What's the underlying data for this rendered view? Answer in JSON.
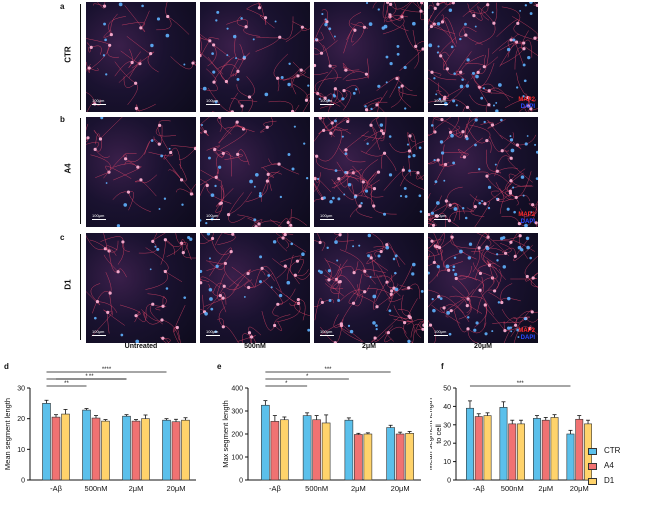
{
  "panel_letters": {
    "a": "a",
    "b": "b",
    "c": "c",
    "d": "d",
    "e": "e",
    "f": "f"
  },
  "rows": [
    {
      "id": "CTR",
      "label": "CTR"
    },
    {
      "id": "A4",
      "label": "A4"
    },
    {
      "id": "D1",
      "label": "D1"
    }
  ],
  "columns": [
    "Untreated",
    "500nM",
    "2μM",
    "20μM"
  ],
  "scale_bar_text": "100μm",
  "stain_labels": {
    "map2": "MAP2",
    "dapi": "DAPI"
  },
  "colors": {
    "CTR": "#5bc0eb",
    "A4": "#f07272",
    "D1": "#ffd36b",
    "neurite": "#e8466a",
    "nuclei": "#5fb2ff"
  },
  "legend": [
    {
      "name": "CTR",
      "color": "#5bc0eb"
    },
    {
      "name": "A4",
      "color": "#f07272"
    },
    {
      "name": "D1",
      "color": "#ffd36b"
    }
  ],
  "chart_data": [
    {
      "type": "bar",
      "panel": "d",
      "ylabel": "Mean segment length",
      "xlabel": "",
      "categories": [
        "-Aβ",
        "500nM",
        "2μM",
        "20μM"
      ],
      "ylim": [
        0,
        30
      ],
      "yticks": [
        0,
        10,
        20,
        30
      ],
      "series": [
        {
          "name": "CTR",
          "values": [
            25,
            22.8,
            20.8,
            19.5
          ],
          "errors": [
            1.0,
            0.5,
            0.5,
            0.5
          ]
        },
        {
          "name": "A4",
          "values": [
            20.5,
            20.2,
            19.2,
            19.0
          ],
          "errors": [
            0.8,
            0.8,
            0.5,
            0.8
          ]
        },
        {
          "name": "D1",
          "values": [
            21.5,
            19.2,
            20.0,
            19.5
          ],
          "errors": [
            1.5,
            0.5,
            1.2,
            0.8
          ]
        }
      ],
      "significance": [
        "**",
        "*",
        "**",
        "****"
      ]
    },
    {
      "type": "bar",
      "panel": "e",
      "ylabel": "Max segment length",
      "xlabel": "",
      "categories": [
        "-Aβ",
        "500nM",
        "2μM",
        "20μM"
      ],
      "ylim": [
        0,
        400
      ],
      "yticks": [
        0,
        100,
        200,
        300,
        400
      ],
      "series": [
        {
          "name": "CTR",
          "values": [
            325,
            280,
            260,
            228
          ],
          "errors": [
            20,
            12,
            10,
            10
          ]
        },
        {
          "name": "A4",
          "values": [
            255,
            262,
            198,
            200
          ],
          "errors": [
            25,
            18,
            5,
            8
          ]
        },
        {
          "name": "D1",
          "values": [
            262,
            248,
            200,
            203
          ],
          "errors": [
            12,
            35,
            5,
            8
          ]
        }
      ],
      "significance": [
        "*",
        "*",
        "***"
      ]
    },
    {
      "type": "bar",
      "panel": "f",
      "ylabel": "Mean segment length to cell",
      "xlabel": "",
      "categories": [
        "-Aβ",
        "500nM",
        "2μM",
        "20μM"
      ],
      "ylim": [
        0,
        50
      ],
      "yticks": [
        0,
        10,
        20,
        30,
        40,
        50
      ],
      "series": [
        {
          "name": "CTR",
          "values": [
            39,
            39.5,
            33.5,
            25
          ],
          "errors": [
            4,
            3,
            1.5,
            2
          ]
        },
        {
          "name": "A4",
          "values": [
            34.5,
            30.5,
            32.5,
            33
          ],
          "errors": [
            1.5,
            2,
            1.5,
            2
          ]
        },
        {
          "name": "D1",
          "values": [
            35,
            30.5,
            34,
            30.5
          ],
          "errors": [
            1.5,
            2,
            1.5,
            2
          ]
        }
      ],
      "significance": [
        "***"
      ]
    }
  ]
}
